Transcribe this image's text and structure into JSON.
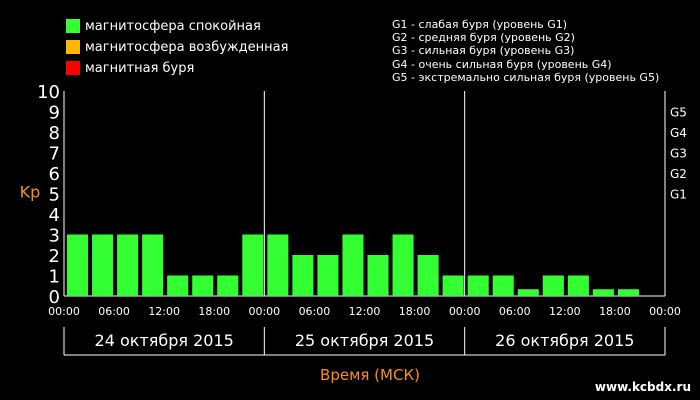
{
  "legend": [
    {
      "label": "магнитосфера спокойная",
      "color": "#33FF33"
    },
    {
      "label": "магнитосфера возбужденная",
      "color": "#FFB800"
    },
    {
      "label": "магнитная буря",
      "color": "#FF0000"
    }
  ],
  "storm_levels": [
    "G1 - слабая буря (уровень G1)",
    "G2 - средняя буря (уровень G2)",
    "G3 - сильная буря (уровень G3)",
    "G4 - очень сильная буря (уровень G4)",
    "G5 - экстремально сильная буря (уровень G5)"
  ],
  "credit": "www.kcbdx.ru",
  "chart_data": {
    "type": "bar",
    "ylabel": "Kp",
    "xlabel": "Время (МСК)",
    "ylim": [
      0,
      10
    ],
    "yticks": [
      "0",
      "1",
      "2",
      "3",
      "4",
      "5",
      "6",
      "7",
      "8",
      "9",
      "10"
    ],
    "right_labels": [
      {
        "label": "G1",
        "kp": 5
      },
      {
        "label": "G2",
        "kp": 6
      },
      {
        "label": "G3",
        "kp": 7
      },
      {
        "label": "G4",
        "kp": 8
      },
      {
        "label": "G5",
        "kp": 9
      }
    ],
    "xticks": [
      "00:00",
      "06:00",
      "12:00",
      "18:00",
      "00:00",
      "06:00",
      "12:00",
      "18:00",
      "00:00",
      "06:00",
      "12:00",
      "18:00",
      "00:00"
    ],
    "days": [
      "24 октября 2015",
      "25 октября 2015",
      "26 октября 2015"
    ],
    "values": [
      3,
      3,
      3,
      3,
      1,
      1,
      1,
      3,
      3,
      2,
      2,
      3,
      2,
      3,
      2,
      1,
      1,
      1,
      0.33,
      1,
      1,
      0.33,
      0.33,
      0
    ],
    "bar_color": "#33FF33",
    "grid": false
  }
}
